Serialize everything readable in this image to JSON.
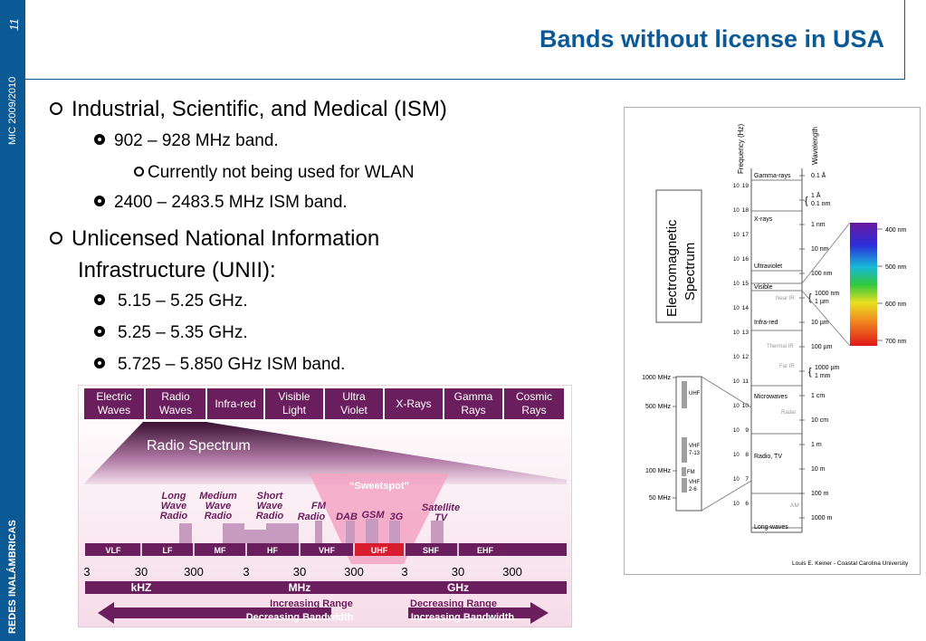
{
  "sidebar": {
    "page_number": "11",
    "course": "MIC 2009/2010",
    "subject": "REDES INALÁMBRICAS"
  },
  "slide": {
    "title": "Bands without license in  USA",
    "bullets": [
      {
        "text": "Industrial, Scientific, and Medical (ISM)"
      },
      {
        "text": "902 – 928 MHz band."
      },
      {
        "text": "Currently not being used for WLAN"
      },
      {
        "text": "2400 – 2483.5 MHz ISM band."
      },
      {
        "text": "Unlicensed National Information"
      },
      {
        "text": "Infrastructure (UNII):"
      },
      {
        "text": "5.15 – 5.25 GHz."
      },
      {
        "text": "5.25 – 5.35 GHz."
      },
      {
        "text": "5.725 – 5.850 GHz ISM band."
      }
    ]
  },
  "radio_chart": {
    "top_bands": [
      "Electric",
      "Waves",
      "Radio",
      "Waves",
      "Infra-red",
      "Visible",
      "Light",
      "Ultra",
      "Violet",
      "X-Rays",
      "Gamma",
      "Rays",
      "Cosmic",
      "Rays"
    ],
    "title": "Radio Spectrum",
    "sweetspot": "“Sweetspot”",
    "services": [
      "Long",
      "Wave",
      "Radio",
      "Medium",
      "Wave",
      "Radio",
      "Short",
      "Wave",
      "Radio",
      "FM",
      "Radio",
      "DAB",
      "GSM",
      "3G",
      "Satellite",
      "TV"
    ],
    "band_names": [
      "VLF",
      "LF",
      "MF",
      "HF",
      "VHF",
      "UHF",
      "SHF",
      "EHF"
    ],
    "scale": [
      "3",
      "30",
      "300",
      "3",
      "30",
      "300",
      "3",
      "30",
      "300"
    ],
    "units": [
      "kHZ",
      "MHz",
      "GHz"
    ],
    "left_arrow": [
      "Increasing Range",
      "Decreasing Bandwidth"
    ],
    "right_arrow": [
      "Decreasing Range",
      "Increasing Bandwidth"
    ],
    "colors": {
      "band_strip": "#6b1e5e",
      "uhf": "#d81e2e",
      "sweetspot": "#f2a3c2"
    }
  },
  "em_chart": {
    "title": [
      "Electromagnetic",
      "Spectrum"
    ],
    "freq_header": "Frequency (Hz)",
    "wave_header": "Wavelength",
    "freq_exp": [
      "19",
      "18",
      "17",
      "16",
      "15",
      "14",
      "13",
      "12",
      "11",
      "10",
      "9",
      "8",
      "7",
      "6"
    ],
    "regions": [
      "Gamma-rays",
      "X-rays",
      "Ultraviolet",
      "Visible",
      "Near IR",
      "Infra-red",
      "Thermal IR",
      "Far IR",
      "Microwaves",
      "Radar",
      "Radio, TV",
      "AM",
      "Long-waves"
    ],
    "wavelengths": [
      "0.1 Å",
      "1 Å",
      "0.1 nm",
      "1 nm",
      "10 nm",
      "100 nm",
      "1000 nm",
      "1 µm",
      "10 µm",
      "100 µm",
      "1000 µm",
      "1 mm",
      "1 cm",
      "10 cm",
      "1 m",
      "10 m",
      "100 m",
      "1000 m"
    ],
    "visible_nm": [
      "400 nm",
      "500 nm",
      "600 nm",
      "700 nm"
    ],
    "left_freqs": [
      "1000 MHz",
      "500 MHz",
      "100 MHz",
      "50 MHz"
    ],
    "left_bands": [
      "UHF",
      "VHF",
      "7-13",
      "FM",
      "VHF",
      "2-6"
    ],
    "credit": "Louis E. Keiner - Coastal Carolina University"
  }
}
